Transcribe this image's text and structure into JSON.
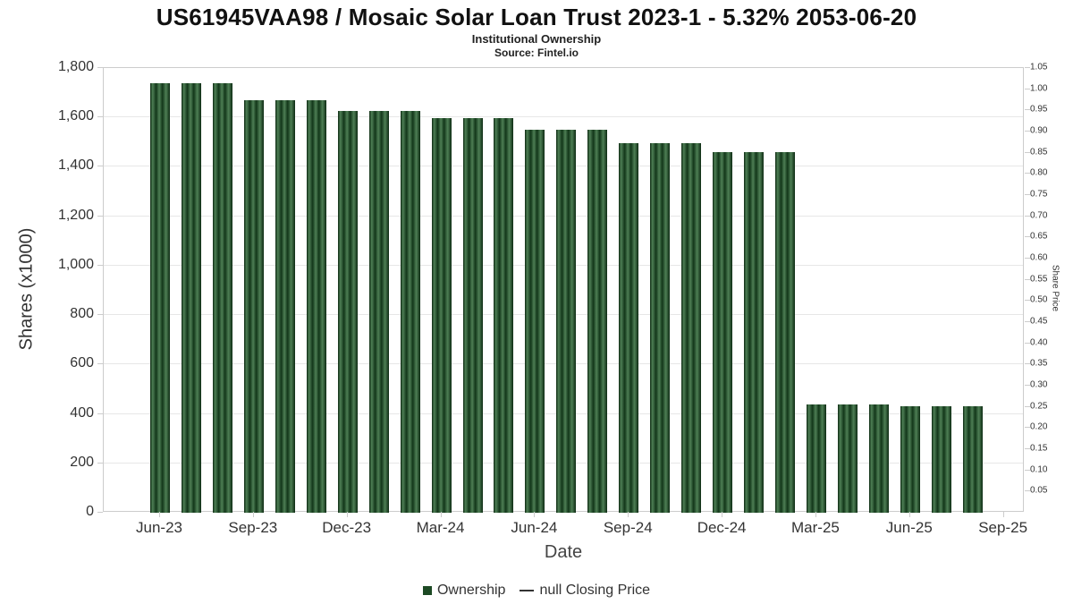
{
  "header": {
    "title": "US61945VAA98 / Mosaic Solar Loan Trust 2023-1 - 5.32% 2053-06-20",
    "subtitle": "Institutional Ownership",
    "source": "Source: Fintel.io"
  },
  "chart_data": {
    "type": "bar",
    "title": "US61945VAA98 / Mosaic Solar Loan Trust 2023-1 - 5.32% 2053-06-20",
    "subtitle": "Institutional Ownership",
    "source": "Source: Fintel.io",
    "xlabel": "Date",
    "ylabel_left": "Shares (x1000)",
    "ylabel_right": "Share Price",
    "categories": [
      "Jun-23",
      "Jul-23",
      "Aug-23",
      "Sep-23",
      "Oct-23",
      "Nov-23",
      "Dec-23",
      "Jan-24",
      "Feb-24",
      "Mar-24",
      "Apr-24",
      "May-24",
      "Jun-24",
      "Jul-24",
      "Aug-24",
      "Sep-24",
      "Oct-24",
      "Nov-24",
      "Dec-24",
      "Jan-25",
      "Feb-25",
      "Mar-25",
      "Apr-25",
      "May-25",
      "Jun-25",
      "Jul-25",
      "Aug-25"
    ],
    "values": [
      1740,
      1740,
      1740,
      1670,
      1670,
      1670,
      1625,
      1625,
      1625,
      1597,
      1597,
      1597,
      1550,
      1550,
      1550,
      1497,
      1497,
      1497,
      1460,
      1460,
      1460,
      440,
      440,
      440,
      432,
      432,
      432
    ],
    "x_tick_labels": [
      "Jun-23",
      "Sep-23",
      "Dec-23",
      "Mar-24",
      "Jun-24",
      "Sep-24",
      "Dec-24",
      "Mar-25",
      "Jun-25",
      "Sep-25"
    ],
    "y_left": {
      "min": 0,
      "max": 1800,
      "step": 200
    },
    "y_right": {
      "min": 0,
      "max": 1.05,
      "step": 0.05,
      "labels_start": 0.05
    },
    "grid": true,
    "legend_position": "bottom",
    "bar_color": "#1d4a24",
    "legend": [
      {
        "label": "Ownership",
        "type": "bar",
        "color": "#1d4a24"
      },
      {
        "label": "null Closing Price",
        "type": "line",
        "color": "#333333"
      }
    ]
  }
}
